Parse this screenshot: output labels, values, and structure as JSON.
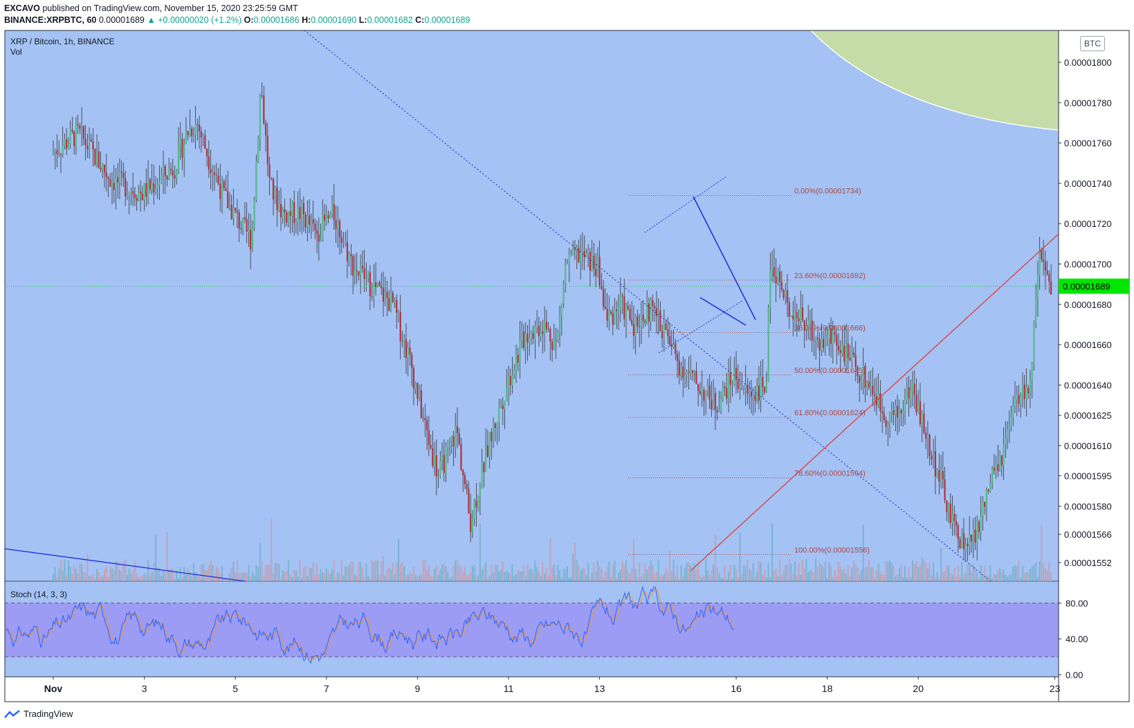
{
  "header": {
    "publisher": "EXCAVO",
    "published_text": "published on TradingView.com, November 15, 2020 23:25:59 GMT",
    "symbol_line": "BINANCE:XRPBTC, 60",
    "last": "0.00001689",
    "change": "▲ +0.00000020 (+1.2%)",
    "o_label": "O:",
    "o": "0.00001686",
    "h_label": "H:",
    "h": "0.00001690",
    "l_label": "L:",
    "l": "0.00001682",
    "c_label": "C:",
    "c": "0.00001689"
  },
  "legend": {
    "title": "XRP / Bitcoin, 1h, BINANCE",
    "vol": "Vol"
  },
  "currency_badge": "BTC",
  "stoch_label": "Stoch (14, 3, 3)",
  "footer": {
    "brand": "TradingView"
  },
  "colors": {
    "background": "#a4c2f4",
    "stoch_band": "#9c9cf4",
    "up": "#26a69a",
    "down": "#ef5350",
    "candle_body": "#53b987",
    "fib": "#b0463f",
    "trend_blue": "#1e2bd6",
    "diag_red": "#e53935",
    "price_badge": "#00e600",
    "green_zone": "#c5dba8"
  },
  "chart_data": {
    "type": "candlestick",
    "title": "XRP / Bitcoin, 1h, BINANCE",
    "last_price": "0.00001689",
    "x_ticks": [
      "Nov",
      "3",
      "5",
      "7",
      "9",
      "11",
      "13",
      "16",
      "18",
      "20",
      "23"
    ],
    "price_ticks": [
      "0.00001800",
      "0.00001780",
      "0.00001760",
      "0.00001740",
      "0.00001720",
      "0.00001700",
      "0.00001680",
      "0.00001660",
      "0.00001640",
      "0.00001625",
      "0.00001610",
      "0.00001595",
      "0.00001580",
      "0.00001566",
      "0.00001552"
    ],
    "fib_levels": [
      {
        "label": "0.00%(0.00001734)",
        "price": 1.734e-05
      },
      {
        "label": "23.60%(0.00001692)",
        "price": 1.692e-05
      },
      {
        "label": "38.20%(0.00001666)",
        "price": 1.666e-05
      },
      {
        "label": "50.00%(0.00001645)",
        "price": 1.645e-05
      },
      {
        "label": "61.80%(0.00001624)",
        "price": 1.624e-05
      },
      {
        "label": "78.60%(0.00001594)",
        "price": 1.594e-05
      },
      {
        "label": "100.00%(0.00001556)",
        "price": 1.556e-05
      }
    ],
    "stoch_ticks": [
      "80.00",
      "40.00",
      "0.00"
    ],
    "stoch_bands": [
      20,
      80
    ],
    "path_keypoints": [
      {
        "t": 0.0,
        "p": 1.755e-05
      },
      {
        "t": 0.6,
        "p": 1.765e-05
      },
      {
        "t": 1.3,
        "p": 1.742e-05
      },
      {
        "t": 2.0,
        "p": 1.735e-05
      },
      {
        "t": 2.7,
        "p": 1.748e-05
      },
      {
        "t": 3.0,
        "p": 1.766e-05
      },
      {
        "t": 3.2,
        "p": 1.77e-05
      },
      {
        "t": 3.5,
        "p": 1.75e-05
      },
      {
        "t": 3.8,
        "p": 1.733e-05
      },
      {
        "t": 4.2,
        "p": 1.718e-05
      },
      {
        "t": 4.4,
        "p": 1.712e-05
      },
      {
        "t": 4.6,
        "p": 1.79e-05
      },
      {
        "t": 4.8,
        "p": 1.738e-05
      },
      {
        "t": 5.1,
        "p": 1.725e-05
      },
      {
        "t": 5.5,
        "p": 1.725e-05
      },
      {
        "t": 5.8,
        "p": 1.715e-05
      },
      {
        "t": 6.2,
        "p": 1.725e-05
      },
      {
        "t": 6.6,
        "p": 1.7e-05
      },
      {
        "t": 7.0,
        "p": 1.69e-05
      },
      {
        "t": 7.5,
        "p": 1.68e-05
      },
      {
        "t": 7.9,
        "p": 1.65e-05
      },
      {
        "t": 8.2,
        "p": 1.62e-05
      },
      {
        "t": 8.5,
        "p": 1.595e-05
      },
      {
        "t": 8.9,
        "p": 1.618e-05
      },
      {
        "t": 9.2,
        "p": 1.572e-05
      },
      {
        "t": 9.6,
        "p": 1.61e-05
      },
      {
        "t": 10.0,
        "p": 1.64e-05
      },
      {
        "t": 10.4,
        "p": 1.665e-05
      },
      {
        "t": 10.8,
        "p": 1.67e-05
      },
      {
        "t": 11.1,
        "p": 1.66e-05
      },
      {
        "t": 11.3,
        "p": 1.7e-05
      },
      {
        "t": 11.6,
        "p": 1.705e-05
      },
      {
        "t": 12.0,
        "p": 1.698e-05
      },
      {
        "t": 12.2,
        "p": 1.672e-05
      },
      {
        "t": 12.5,
        "p": 1.68e-05
      },
      {
        "t": 12.8,
        "p": 1.67e-05
      },
      {
        "t": 13.2,
        "p": 1.678e-05
      },
      {
        "t": 13.5,
        "p": 1.665e-05
      },
      {
        "t": 13.8,
        "p": 1.65e-05
      },
      {
        "t": 14.2,
        "p": 1.64e-05
      },
      {
        "t": 14.6,
        "p": 1.63e-05
      },
      {
        "t": 15.0,
        "p": 1.645e-05
      },
      {
        "t": 15.3,
        "p": 1.635e-05
      },
      {
        "t": 15.7,
        "p": 1.64e-05
      },
      {
        "t": 15.8,
        "p": 1.705e-05
      },
      {
        "t": 16.1,
        "p": 1.682e-05
      },
      {
        "t": 16.5,
        "p": 1.672e-05
      },
      {
        "t": 16.9,
        "p": 1.66e-05
      },
      {
        "t": 17.2,
        "p": 1.665e-05
      },
      {
        "t": 17.6,
        "p": 1.65e-05
      },
      {
        "t": 18.0,
        "p": 1.64e-05
      },
      {
        "t": 18.3,
        "p": 1.625e-05
      },
      {
        "t": 18.6,
        "p": 1.625e-05
      },
      {
        "t": 18.9,
        "p": 1.64e-05
      },
      {
        "t": 19.2,
        "p": 1.615e-05
      },
      {
        "t": 19.5,
        "p": 1.595e-05
      },
      {
        "t": 19.8,
        "p": 1.57e-05
      },
      {
        "t": 20.1,
        "p": 1.56e-05
      },
      {
        "t": 20.3,
        "p": 1.565e-05
      },
      {
        "t": 20.6,
        "p": 1.59e-05
      },
      {
        "t": 20.9,
        "p": 1.605e-05
      },
      {
        "t": 21.2,
        "p": 1.632e-05
      },
      {
        "t": 21.5,
        "p": 1.64e-05
      },
      {
        "t": 21.7,
        "p": 1.702e-05
      },
      {
        "t": 21.9,
        "p": 1.69e-05
      },
      {
        "t": 22.2,
        "p": 1.662e-05
      },
      {
        "t": 22.5,
        "p": 1.68e-05
      },
      {
        "t": 22.8,
        "p": 1.668e-05
      },
      {
        "t": 23.0,
        "p": 1.682e-05
      },
      {
        "t": 23.2,
        "p": 1.668e-05
      },
      {
        "t": 23.4,
        "p": 1.727e-05
      },
      {
        "t": 23.6,
        "p": 1.705e-05
      },
      {
        "t": 23.8,
        "p": 1.712e-05
      },
      {
        "t": 24.0,
        "p": 1.7e-05
      },
      {
        "t": 24.2,
        "p": 1.694e-05
      },
      {
        "t": 24.4,
        "p": 1.685e-05
      },
      {
        "t": 24.6,
        "p": 1.689e-05
      }
    ]
  }
}
